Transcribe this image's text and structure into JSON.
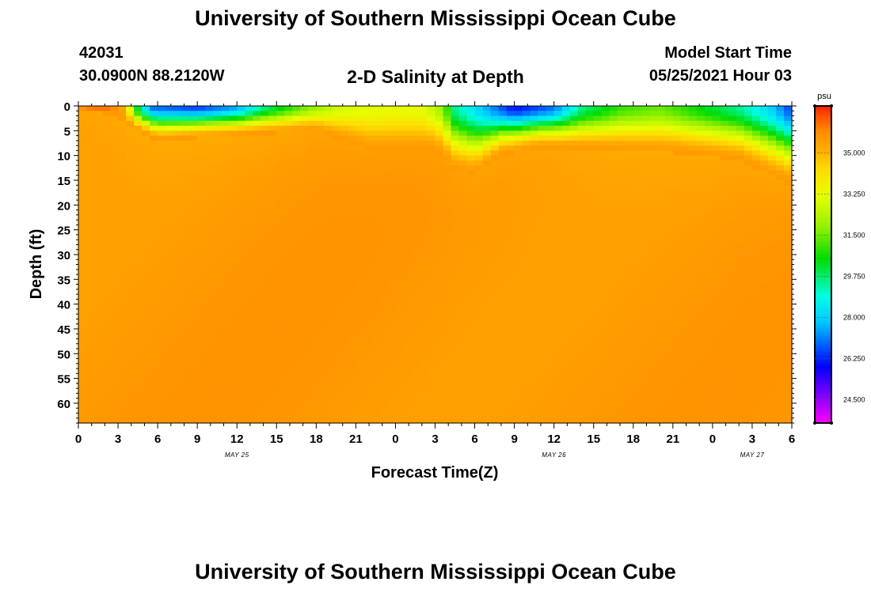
{
  "header": {
    "title": "University of Southern Mississippi Ocean Cube",
    "station_id": "42031",
    "coordinates": "30.0900N  88.2120W",
    "plot_title": "2-D Salinity at Depth",
    "model_start_label": "Model Start Time",
    "model_start_value": "05/25/2021 Hour 03"
  },
  "footer": {
    "title": "University of Southern Mississippi Ocean Cube"
  },
  "chart_data": {
    "type": "heatmap",
    "title": "2-D Salinity at Depth",
    "xlabel": "Forecast Time(Z)",
    "ylabel": "Depth (ft)",
    "x_hours_range": [
      0,
      54
    ],
    "x_tick_hours": [
      0,
      3,
      6,
      9,
      12,
      15,
      18,
      21,
      24,
      27,
      30,
      33,
      36,
      39,
      42,
      45,
      48,
      51,
      54
    ],
    "x_tick_labels": [
      "0",
      "3",
      "6",
      "9",
      "12",
      "15",
      "18",
      "21",
      "0",
      "3",
      "6",
      "9",
      "12",
      "15",
      "18",
      "21",
      "0",
      "3",
      "6"
    ],
    "date_labels": [
      {
        "hour": 12,
        "label": "MAY 25"
      },
      {
        "hour": 36,
        "label": "MAY 26"
      },
      {
        "hour": 51,
        "label": "MAY 27"
      }
    ],
    "ylim": [
      0,
      64
    ],
    "y_ticks": [
      0,
      5,
      10,
      15,
      20,
      25,
      30,
      35,
      40,
      45,
      50,
      55,
      60
    ],
    "y_tick_labels": [
      "0",
      "5",
      "10",
      "15",
      "20",
      "25",
      "30",
      "35",
      "40",
      "45",
      "50",
      "55",
      "60"
    ],
    "colorbar": {
      "unit": "psu",
      "range": [
        23.5,
        37.0
      ],
      "ticks": [
        24.5,
        26.25,
        28.0,
        29.75,
        31.5,
        33.25,
        35.0
      ],
      "tick_labels": [
        "24.500",
        "26.250",
        "28.000",
        "29.750",
        "31.500",
        "33.250",
        "35.000"
      ]
    },
    "surface_salinity_by_hour": [
      [
        0,
        36.6
      ],
      [
        2,
        36.4
      ],
      [
        3.5,
        35.2
      ],
      [
        4.5,
        30.0
      ],
      [
        5.5,
        27.0
      ],
      [
        9,
        26.5
      ],
      [
        12,
        27.5
      ],
      [
        14,
        29.5
      ],
      [
        17,
        31.5
      ],
      [
        20,
        33.0
      ],
      [
        24,
        33.3
      ],
      [
        26,
        33.3
      ],
      [
        27.5,
        32.0
      ],
      [
        28.5,
        29.5
      ],
      [
        31,
        27.5
      ],
      [
        33,
        26.0
      ],
      [
        36,
        27.0
      ],
      [
        38,
        29.5
      ],
      [
        41,
        31.0
      ],
      [
        44,
        31.5
      ],
      [
        47,
        30.5
      ],
      [
        50,
        29.5
      ],
      [
        52.5,
        28.0
      ],
      [
        54,
        26.5
      ]
    ],
    "fresh_layer_depth_ft_by_hour": [
      [
        0,
        0.5
      ],
      [
        3,
        2.0
      ],
      [
        4,
        4.5
      ],
      [
        6,
        7.0
      ],
      [
        12,
        6.0
      ],
      [
        18,
        5.0
      ],
      [
        20,
        7.0
      ],
      [
        22,
        9.0
      ],
      [
        25,
        9.0
      ],
      [
        27,
        9.0
      ],
      [
        28.5,
        13.0
      ],
      [
        30,
        14.0
      ],
      [
        32,
        10.0
      ],
      [
        35,
        8.5
      ],
      [
        40,
        9.0
      ],
      [
        45,
        9.5
      ],
      [
        50,
        11.0
      ],
      [
        54,
        16.0
      ]
    ],
    "deep_salinity_psu": 35.6
  }
}
